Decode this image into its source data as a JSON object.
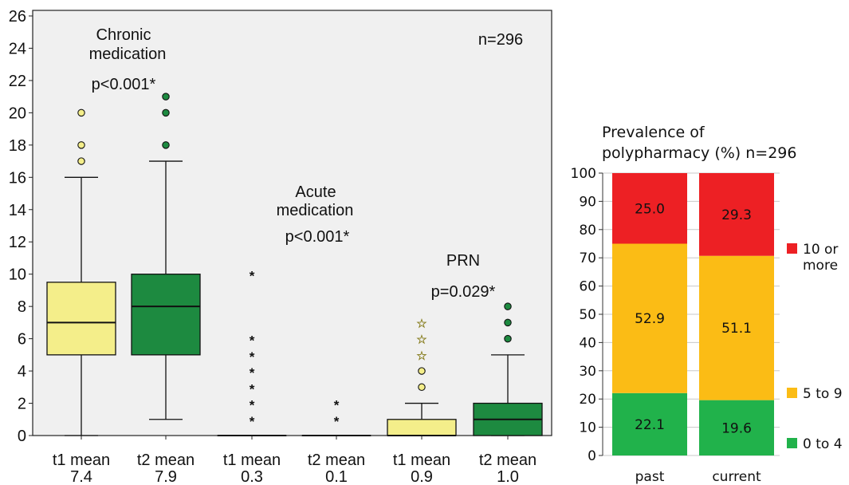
{
  "chart_data": [
    {
      "type": "box",
      "ylim": [
        0,
        26
      ],
      "yticks": [
        0,
        2,
        4,
        6,
        8,
        10,
        12,
        14,
        16,
        18,
        20,
        22,
        24,
        26
      ],
      "n_label": "n=296",
      "groups": [
        {
          "title_line1": "Chronic",
          "title_line2": "medication",
          "pvalue": "p<0.001*"
        },
        {
          "title_line1": "Acute",
          "title_line2": "medication",
          "pvalue": "p<0.001*"
        },
        {
          "title_line1": "PRN",
          "title_line2": "",
          "pvalue": "p=0.029*"
        }
      ],
      "boxes": [
        {
          "label_line1": "t1  mean",
          "label_line2": "7.4",
          "color": "#f4ee8a",
          "group": 0,
          "whisker_low": 0,
          "q1": 5,
          "median": 7,
          "q3": 9.5,
          "whisker_high": 16,
          "outliers": [
            17,
            18,
            20
          ],
          "outlier_marker": "circle"
        },
        {
          "label_line1": "t2 mean",
          "label_line2": "7.9",
          "color": "#1d8a40",
          "group": 0,
          "whisker_low": 1,
          "q1": 5,
          "median": 8,
          "q3": 10,
          "whisker_high": 17,
          "outliers": [
            18,
            20,
            21
          ],
          "outlier_marker": "circle"
        },
        {
          "label_line1": "t1 mean",
          "label_line2": "0.3",
          "color": "#f4ee8a",
          "group": 1,
          "whisker_low": 0,
          "q1": 0,
          "median": 0,
          "q3": 0,
          "whisker_high": 0,
          "outliers": [
            1,
            2,
            3,
            4,
            5,
            6,
            10
          ],
          "outlier_marker": "star"
        },
        {
          "label_line1": "t2 mean",
          "label_line2": "0.1",
          "color": "#1d8a40",
          "group": 1,
          "whisker_low": 0,
          "q1": 0,
          "median": 0,
          "q3": 0,
          "whisker_high": 0,
          "outliers": [
            1,
            2
          ],
          "outlier_marker": "star"
        },
        {
          "label_line1": "t1 mean",
          "label_line2": "0.9",
          "color": "#f4ee8a",
          "group": 2,
          "whisker_low": 0,
          "q1": 0,
          "median": 0,
          "q3": 1,
          "whisker_high": 2,
          "outliers": [
            3,
            4,
            5,
            6,
            7
          ],
          "outlier_marker": "mixed"
        },
        {
          "label_line1": "t2 mean",
          "label_line2": "1.0",
          "color": "#1d8a40",
          "group": 2,
          "whisker_low": 0,
          "q1": 0,
          "median": 1,
          "q3": 2,
          "whisker_high": 5,
          "outliers": [
            6,
            7,
            8
          ],
          "outlier_marker": "circle"
        }
      ]
    },
    {
      "type": "bar",
      "stacked": true,
      "title_line1": "Prevalence of",
      "title_line2": "polypharmacy (%)  n=296",
      "categories": [
        "past",
        "current"
      ],
      "ylim": [
        0,
        100
      ],
      "yticks": [
        0,
        10,
        20,
        30,
        40,
        50,
        60,
        70,
        80,
        90,
        100
      ],
      "series": [
        {
          "name": "0 to 4",
          "color": "#21b24b",
          "values": [
            22.1,
            19.6
          ],
          "labels": [
            "22.1",
            "19.6"
          ]
        },
        {
          "name": "5 to 9",
          "color": "#fbbc15",
          "values": [
            52.9,
            51.1
          ],
          "labels": [
            "52.9",
            "51.1"
          ]
        },
        {
          "name": "10 or more",
          "name_line1": "10 or",
          "name_line2": "more",
          "color": "#ed2024",
          "values": [
            25.0,
            29.3
          ],
          "labels": [
            "25.0",
            "29.3"
          ]
        }
      ]
    }
  ]
}
